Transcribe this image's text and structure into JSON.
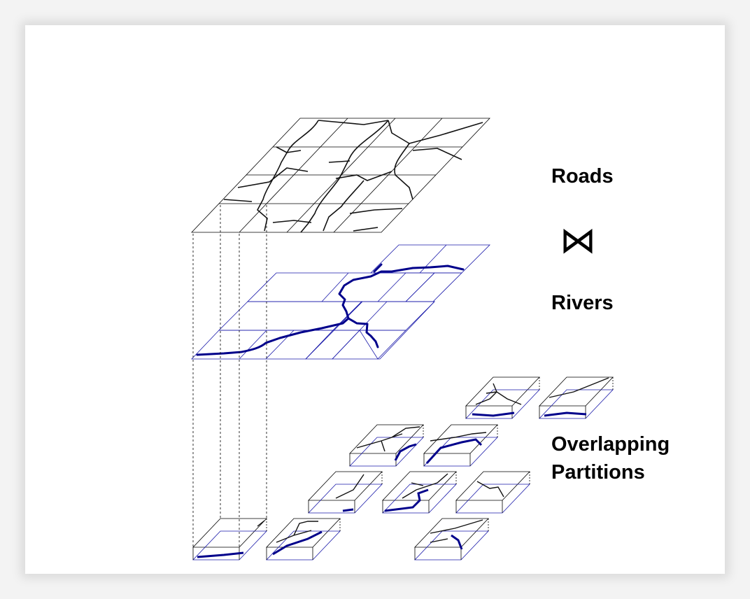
{
  "labels": {
    "roads": "Roads",
    "join_symbol": "⋈",
    "rivers": "Rivers",
    "partitions_line1": "Overlapping",
    "partitions_line2": "Partitions"
  },
  "colors": {
    "background": "#ffffff",
    "road_line": "#000000",
    "river_line": "#00008b",
    "grid_blue": "#1a1aaa"
  }
}
